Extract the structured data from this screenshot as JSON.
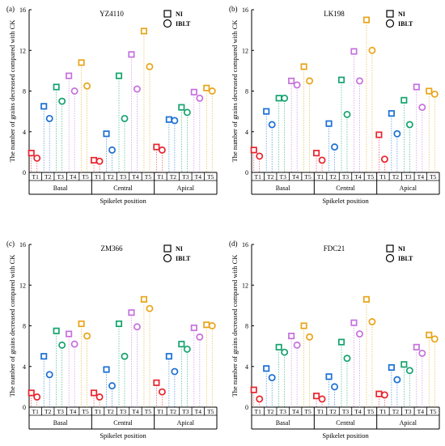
{
  "chart_data": [
    {
      "type": "scatter",
      "panel_label": "(a)",
      "title": "YZ4110",
      "xlabel": "Spikelet position",
      "ylabel": "The number of grains decreased compared with CK",
      "ylim": [
        0,
        16
      ],
      "yticks": [
        0,
        4,
        8,
        12,
        16
      ],
      "groups": [
        "Basal",
        "Central",
        "Apical"
      ],
      "treatments": [
        "T1",
        "T2",
        "T3",
        "T4",
        "T5"
      ],
      "legend": [
        {
          "name": "NI",
          "marker": "square"
        },
        {
          "name": "IBLT",
          "marker": "circle"
        }
      ],
      "series": [
        {
          "name": "NI",
          "values": [
            [
              1.9,
              6.5,
              8.4,
              9.5,
              10.8
            ],
            [
              1.2,
              3.8,
              9.5,
              11.6,
              13.9
            ],
            [
              2.5,
              5.2,
              6.4,
              7.9,
              8.3
            ]
          ]
        },
        {
          "name": "IBLT",
          "values": [
            [
              1.4,
              5.3,
              7.0,
              8.0,
              8.5
            ],
            [
              1.1,
              2.2,
              5.3,
              8.2,
              10.4
            ],
            [
              2.2,
              5.1,
              5.9,
              7.3,
              8.0
            ]
          ]
        }
      ]
    },
    {
      "type": "scatter",
      "panel_label": "(b)",
      "title": "LK198",
      "xlabel": "Spikelet position",
      "ylabel": "The number of grains decreased compared with CK",
      "ylim": [
        0,
        16
      ],
      "yticks": [
        0,
        4,
        8,
        12,
        16
      ],
      "groups": [
        "Basal",
        "Central",
        "Apical"
      ],
      "treatments": [
        "T1",
        "T2",
        "T3",
        "T4",
        "T5"
      ],
      "legend": [
        {
          "name": "NI",
          "marker": "square"
        },
        {
          "name": "IBLT",
          "marker": "circle"
        }
      ],
      "series": [
        {
          "name": "NI",
          "values": [
            [
              2.2,
              6.0,
              7.3,
              9.0,
              10.4
            ],
            [
              1.9,
              4.8,
              9.1,
              11.9,
              15.0
            ],
            [
              3.7,
              5.8,
              7.1,
              8.4,
              8.0
            ]
          ]
        },
        {
          "name": "IBLT",
          "values": [
            [
              1.6,
              4.7,
              7.3,
              8.6,
              9.0
            ],
            [
              1.2,
              2.5,
              5.7,
              9.0,
              12.0
            ],
            [
              1.3,
              3.8,
              4.7,
              6.4,
              7.7
            ]
          ]
        }
      ]
    },
    {
      "type": "scatter",
      "panel_label": "(c)",
      "title": "ZM366",
      "xlabel": "Spikelet position",
      "ylabel": "The number of grains decreased compared with CK",
      "ylim": [
        0,
        16
      ],
      "yticks": [
        0,
        4,
        8,
        12,
        16
      ],
      "groups": [
        "Basal",
        "Central",
        "Apical"
      ],
      "treatments": [
        "T1",
        "T2",
        "T3",
        "T4",
        "T5"
      ],
      "legend": [
        {
          "name": "NI",
          "marker": "square"
        },
        {
          "name": "IBLT",
          "marker": "circle"
        }
      ],
      "series": [
        {
          "name": "NI",
          "values": [
            [
              1.4,
              5.0,
              7.5,
              7.2,
              8.2
            ],
            [
              1.4,
              3.7,
              8.2,
              9.3,
              10.6
            ],
            [
              2.4,
              5.0,
              6.2,
              7.8,
              8.1
            ]
          ]
        },
        {
          "name": "IBLT",
          "values": [
            [
              1.0,
              3.2,
              6.1,
              6.2,
              7.0
            ],
            [
              1.0,
              2.1,
              5.0,
              7.9,
              9.7
            ],
            [
              1.5,
              3.5,
              5.7,
              6.9,
              8.0
            ]
          ]
        }
      ]
    },
    {
      "type": "scatter",
      "panel_label": "(d)",
      "title": "FDC21",
      "xlabel": "Spikelet position",
      "ylabel": "The number of grains decreased compared with CK",
      "ylim": [
        0,
        16
      ],
      "yticks": [
        0,
        4,
        8,
        12,
        16
      ],
      "groups": [
        "Basal",
        "Central",
        "Apical"
      ],
      "treatments": [
        "T1",
        "T2",
        "T3",
        "T4",
        "T5"
      ],
      "legend": [
        {
          "name": "NI",
          "marker": "square"
        },
        {
          "name": "IBLT",
          "marker": "circle"
        }
      ],
      "series": [
        {
          "name": "NI",
          "values": [
            [
              1.7,
              3.8,
              5.9,
              7.0,
              8.0
            ],
            [
              1.1,
              3.0,
              6.4,
              8.3,
              10.6
            ],
            [
              1.3,
              3.9,
              4.2,
              5.9,
              7.1
            ]
          ]
        },
        {
          "name": "IBLT",
          "values": [
            [
              0.8,
              2.9,
              5.4,
              6.1,
              6.9
            ],
            [
              0.8,
              2.0,
              4.8,
              7.2,
              8.4
            ],
            [
              1.2,
              2.7,
              3.6,
              5.3,
              6.7
            ]
          ]
        }
      ]
    }
  ],
  "treatment_colors": [
    "#e8232d",
    "#1a6fd4",
    "#14a36e",
    "#c670dd",
    "#e9a418"
  ]
}
